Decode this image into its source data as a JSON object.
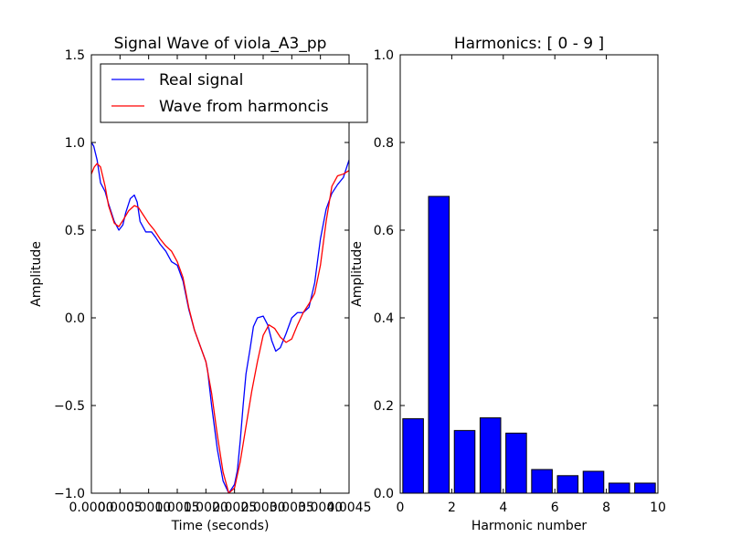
{
  "chart_data": [
    {
      "type": "line",
      "title": "Signal Wave of viola_A3_pp",
      "xlabel": "Time (seconds)",
      "ylabel": "Amplitude",
      "xlim": [
        0,
        0.0045
      ],
      "ylim": [
        -1.0,
        1.5
      ],
      "xticks": [
        0,
        0.0005,
        0.001,
        0.0015,
        0.002,
        0.0025,
        0.003,
        0.0035,
        0.004,
        0.0045
      ],
      "xtick_labels": [
        "0.0000",
        "0.0005",
        "0.0010",
        "0.0015",
        "0.0020",
        "0.0025",
        "0.0030",
        "0.0035",
        "0.0040",
        "0.0045"
      ],
      "yticks": [
        -1.0,
        -0.5,
        0.0,
        0.5,
        1.0,
        1.5
      ],
      "ytick_labels": [
        "−1.0",
        "−0.5",
        "0.0",
        "0.5",
        "1.0",
        "1.5"
      ],
      "grid": false,
      "legend": "top-right",
      "series": [
        {
          "name": "Real signal",
          "color": "#0000ff",
          "x": [
            0,
            4e-05,
            0.0001,
            0.00016,
            0.00024,
            0.0003,
            0.0004,
            0.00048,
            0.00055,
            0.0006,
            0.00068,
            0.00075,
            0.0008,
            0.00085,
            0.00095,
            0.00105,
            0.00112,
            0.0012,
            0.0013,
            0.0014,
            0.0015,
            0.0016,
            0.0017,
            0.0018,
            0.0019,
            0.002,
            0.00203,
            0.0021,
            0.0022,
            0.0023,
            0.0024,
            0.0025,
            0.00255,
            0.0026,
            0.00265,
            0.0027,
            0.00277,
            0.00283,
            0.0029,
            0.003,
            0.00308,
            0.00315,
            0.00322,
            0.0033,
            0.0034,
            0.0035,
            0.0036,
            0.0037,
            0.0038,
            0.0039,
            0.004,
            0.0041,
            0.0042,
            0.0043,
            0.0044,
            0.0045
          ],
          "y": [
            1.0,
            0.98,
            0.9,
            0.77,
            0.72,
            0.65,
            0.55,
            0.5,
            0.53,
            0.6,
            0.68,
            0.7,
            0.66,
            0.55,
            0.49,
            0.49,
            0.46,
            0.42,
            0.38,
            0.32,
            0.3,
            0.21,
            0.05,
            -0.07,
            -0.16,
            -0.25,
            -0.3,
            -0.5,
            -0.75,
            -0.93,
            -1.0,
            -0.95,
            -0.87,
            -0.7,
            -0.5,
            -0.32,
            -0.18,
            -0.05,
            0.0,
            0.01,
            -0.04,
            -0.13,
            -0.19,
            -0.17,
            -0.09,
            0.0,
            0.03,
            0.03,
            0.06,
            0.2,
            0.45,
            0.62,
            0.71,
            0.76,
            0.8,
            0.9
          ]
        },
        {
          "name": "Wave from harmoncis",
          "color": "#ff0000",
          "x": [
            0,
            5e-05,
            0.0001,
            0.00016,
            0.00024,
            0.0003,
            0.0004,
            0.00048,
            0.00056,
            0.00065,
            0.00075,
            0.00082,
            0.0009,
            0.001,
            0.0011,
            0.0012,
            0.0013,
            0.0014,
            0.0015,
            0.0016,
            0.0017,
            0.0018,
            0.0019,
            0.002,
            0.0021,
            0.0022,
            0.0023,
            0.0024,
            0.0025,
            0.0026,
            0.0027,
            0.0028,
            0.0029,
            0.003,
            0.0031,
            0.0032,
            0.0033,
            0.0034,
            0.0035,
            0.0036,
            0.0037,
            0.0038,
            0.0039,
            0.004,
            0.0041,
            0.0042,
            0.0043,
            0.0044,
            0.0045
          ],
          "y": [
            0.82,
            0.86,
            0.88,
            0.86,
            0.75,
            0.64,
            0.54,
            0.52,
            0.56,
            0.61,
            0.64,
            0.63,
            0.59,
            0.54,
            0.5,
            0.45,
            0.41,
            0.38,
            0.32,
            0.23,
            0.06,
            -0.07,
            -0.16,
            -0.25,
            -0.43,
            -0.67,
            -0.88,
            -1.0,
            -0.97,
            -0.82,
            -0.62,
            -0.42,
            -0.25,
            -0.1,
            -0.04,
            -0.06,
            -0.11,
            -0.14,
            -0.12,
            -0.04,
            0.03,
            0.08,
            0.14,
            0.3,
            0.55,
            0.75,
            0.81,
            0.82,
            0.84
          ]
        }
      ]
    },
    {
      "type": "bar",
      "title": "Harmonics: [ 0 - 9 ]",
      "xlabel": "Harmonic number",
      "ylabel": "Amplitude",
      "xlim": [
        0,
        10
      ],
      "ylim": [
        0.0,
        1.0
      ],
      "xticks": [
        0,
        2,
        4,
        6,
        8,
        10
      ],
      "xtick_labels": [
        "0",
        "2",
        "4",
        "6",
        "8",
        "10"
      ],
      "yticks": [
        0.0,
        0.2,
        0.4,
        0.6,
        0.8,
        1.0
      ],
      "ytick_labels": [
        "0.0",
        "0.2",
        "0.4",
        "0.6",
        "0.8",
        "1.0"
      ],
      "grid": false,
      "bar_color": "#0000ff",
      "bar_width": 0.8,
      "categories": [
        0,
        1,
        2,
        3,
        4,
        5,
        6,
        7,
        8,
        9
      ],
      "values": [
        0.17,
        0.677,
        0.143,
        0.172,
        0.137,
        0.054,
        0.04,
        0.05,
        0.023,
        0.023
      ]
    }
  ]
}
